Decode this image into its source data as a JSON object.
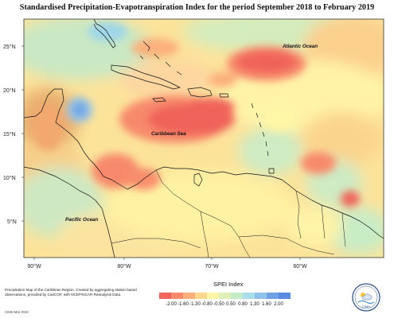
{
  "title": "Standardised Precipitation-Evapotranspiration Index for the period September 2018 to February 2019",
  "map": {
    "lon_ticks": [
      "90°W",
      "80°W",
      "70°W",
      "60°W"
    ],
    "lat_ticks": [
      "25°N",
      "20°N",
      "15°N",
      "10°N",
      "5°N"
    ],
    "labels": {
      "atlantic": "Atlantic Ocean",
      "caribbean": "Caribbean Sea",
      "pacific": "Pacific Ocean"
    }
  },
  "legend": {
    "title": "SPEI Index",
    "ticks": [
      "-2.00",
      "-1.60",
      "-1.30",
      "-0.80",
      "-0.50",
      "0.50",
      "0.80",
      "1.30",
      "1.60",
      "2.00"
    ],
    "colors": [
      "#f0645a",
      "#f78a6c",
      "#fbb07c",
      "#fcd78e",
      "#fff6a6",
      "#dff0b8",
      "#c6ebc7",
      "#a9dde9",
      "#8fc1ea",
      "#6fa2e4",
      "#5a8be0"
    ]
  },
  "caption": "Precipitation Map of the Caribbean Region. Created by aggregating station based observations, provided by CariCOF, with NCEP/NCAR Reanalysis Data.",
  "credit": "CIMH Mar 2019",
  "logo_text": "CIMH"
}
